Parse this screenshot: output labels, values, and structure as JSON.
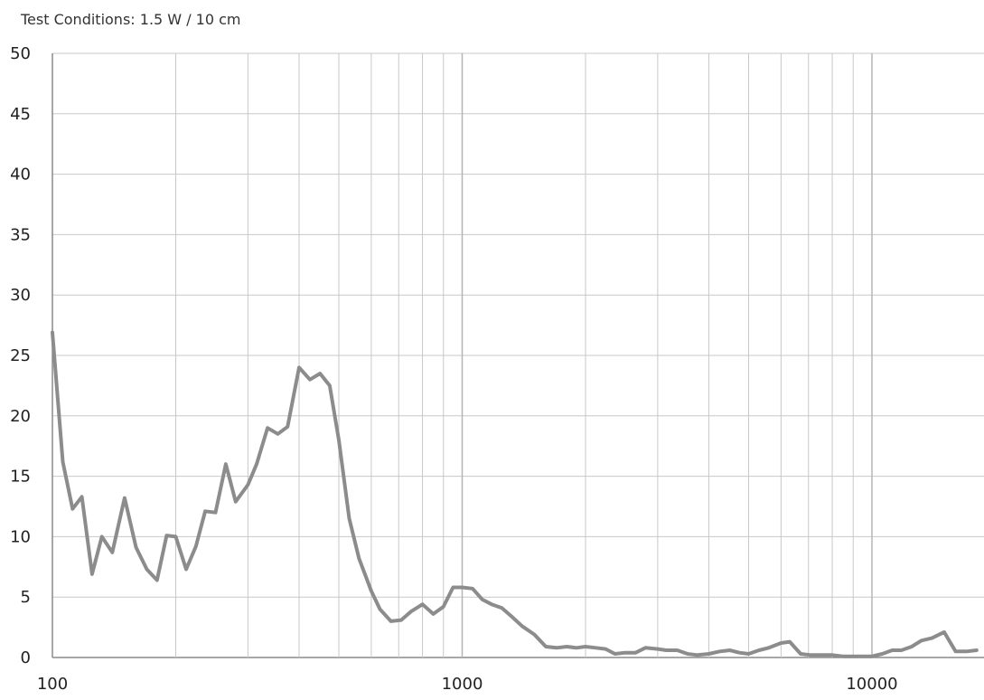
{
  "caption": "Test Conditions: 1.5 W / 10 cm",
  "chart_data": {
    "type": "line",
    "title": "",
    "xlabel": "",
    "ylabel": "",
    "x_scale": "log",
    "xlim": [
      100,
      18000
    ],
    "ylim": [
      0,
      50
    ],
    "grid": true,
    "y_ticks": [
      0,
      5,
      10,
      15,
      20,
      25,
      30,
      35,
      40,
      45,
      50
    ],
    "x_ticks_labeled": [
      100,
      1000,
      10000
    ],
    "x_tick_labels": [
      "100",
      "1000",
      "10000"
    ],
    "x_minor_gridlines": [
      200,
      300,
      400,
      500,
      600,
      700,
      800,
      900,
      2000,
      3000,
      4000,
      5000,
      6000,
      7000,
      8000,
      9000
    ],
    "series": [
      {
        "color": "#8c8c8c",
        "x": [
          100,
          106,
          112,
          118,
          125,
          132,
          140,
          150,
          160,
          170,
          180,
          190,
          200,
          212,
          224,
          236,
          250,
          265,
          280,
          300,
          315,
          335,
          355,
          375,
          400,
          425,
          450,
          475,
          500,
          530,
          560,
          600,
          630,
          670,
          710,
          750,
          800,
          850,
          900,
          950,
          1000,
          1060,
          1120,
          1180,
          1250,
          1320,
          1400,
          1500,
          1600,
          1700,
          1800,
          1900,
          2000,
          2120,
          2240,
          2360,
          2500,
          2650,
          2800,
          3000,
          3150,
          3350,
          3550,
          3750,
          4000,
          4250,
          4500,
          4750,
          5000,
          5300,
          5600,
          6000,
          6300,
          6700,
          7100,
          7500,
          8000,
          8500,
          9000,
          9500,
          10000,
          10600,
          11200,
          11800,
          12500,
          13200,
          14000,
          15000,
          16000,
          17000,
          18000
        ],
        "y": [
          26.9,
          16.2,
          12.3,
          13.3,
          6.9,
          10.0,
          8.7,
          13.2,
          9.1,
          7.3,
          6.4,
          10.1,
          10.0,
          7.3,
          9.2,
          12.1,
          12.0,
          16.0,
          12.9,
          14.3,
          16.0,
          19.0,
          18.5,
          19.1,
          24.0,
          23.0,
          23.5,
          22.5,
          18.0,
          11.5,
          8.2,
          5.5,
          4.0,
          3.0,
          3.1,
          3.8,
          4.4,
          3.6,
          4.2,
          5.8,
          5.8,
          5.7,
          4.8,
          4.4,
          4.1,
          3.4,
          2.6,
          1.9,
          0.9,
          0.8,
          0.9,
          0.8,
          0.9,
          0.8,
          0.7,
          0.3,
          0.4,
          0.4,
          0.8,
          0.7,
          0.6,
          0.6,
          0.3,
          0.2,
          0.3,
          0.5,
          0.6,
          0.4,
          0.3,
          0.6,
          0.8,
          1.2,
          1.3,
          0.3,
          0.2,
          0.2,
          0.2,
          0.1,
          0.1,
          0.1,
          0.1,
          0.3,
          0.6,
          0.6,
          0.9,
          1.4,
          1.6,
          2.1,
          0.5,
          0.5,
          0.6
        ]
      }
    ]
  }
}
